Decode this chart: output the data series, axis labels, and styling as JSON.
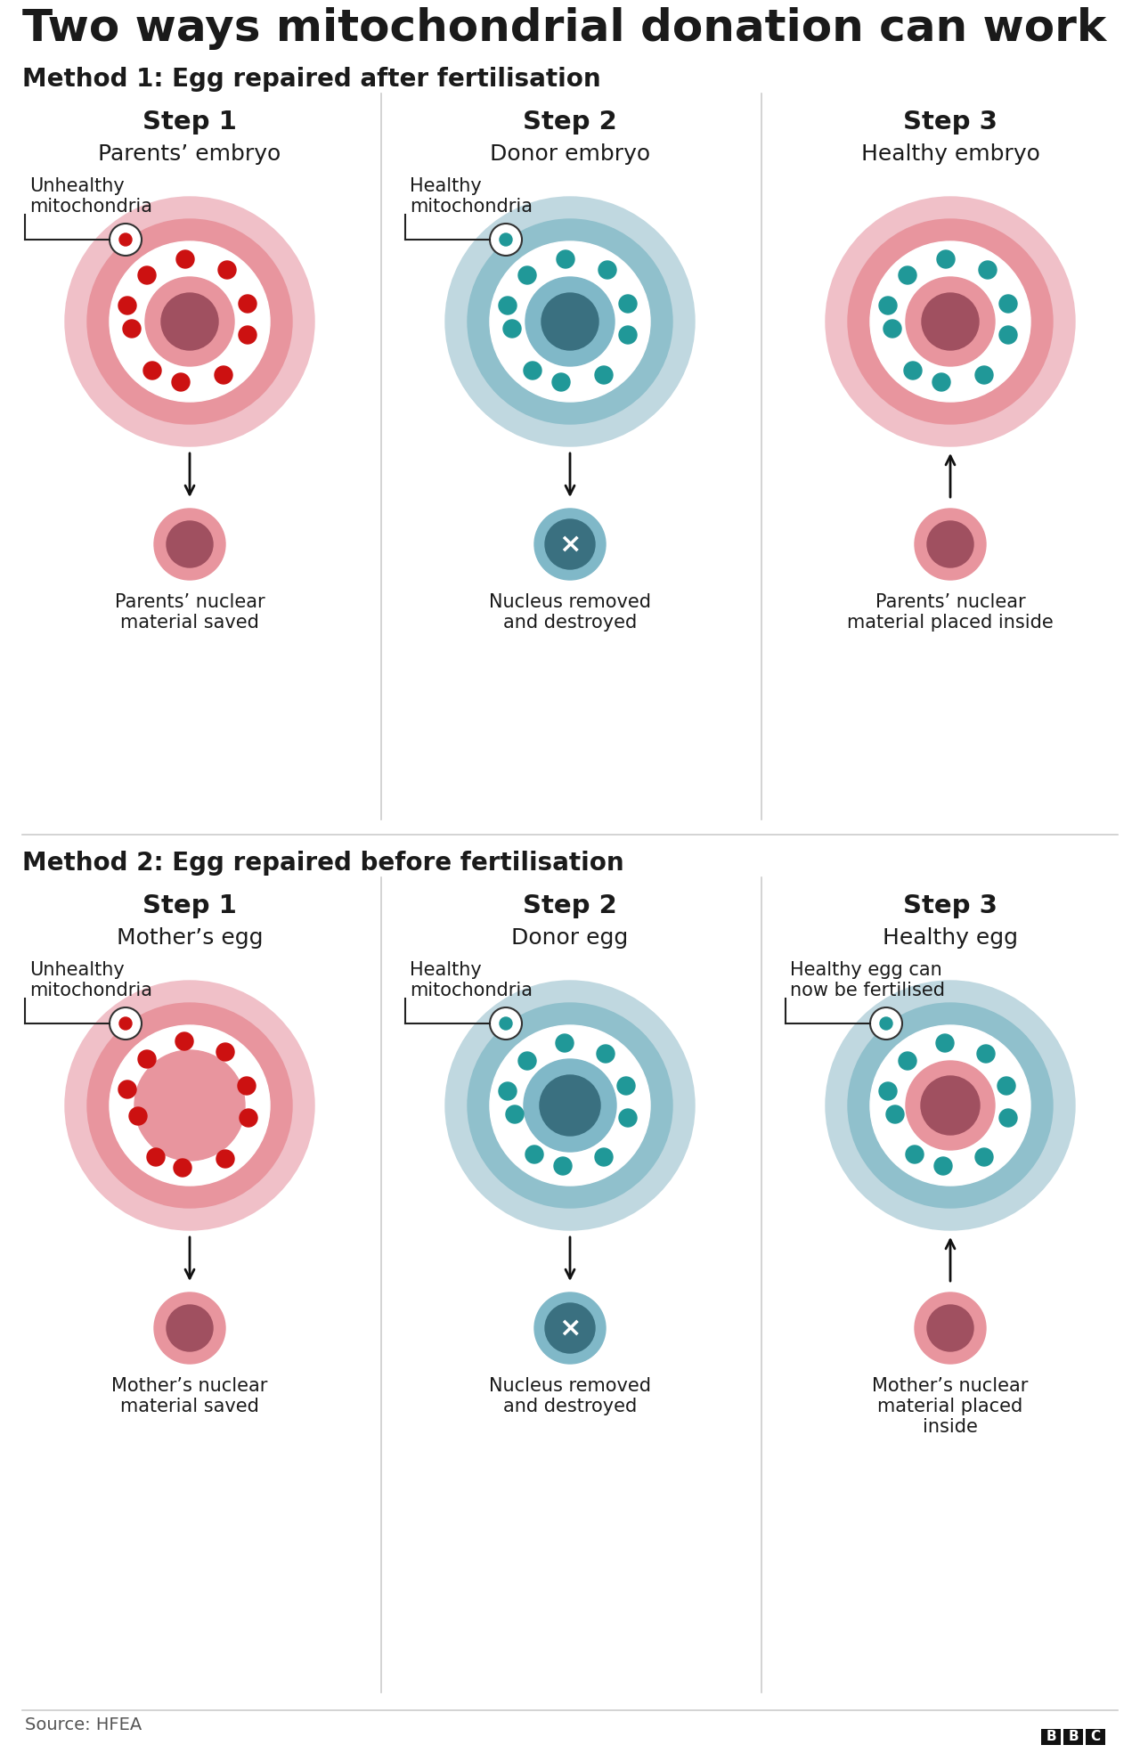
{
  "title": "Two ways mitochondrial donation can work",
  "method1_title": "Method 1: Egg repaired after fertilisation",
  "method2_title": "Method 2: Egg repaired before fertilisation",
  "method1_steps": [
    "Step 1",
    "Step 2",
    "Step 3"
  ],
  "method1_subtitles": [
    "Parents’ embryo",
    "Donor embryo",
    "Healthy embryo"
  ],
  "method1_labels": [
    "Unhealthy\nmitochondria",
    "Healthy\nmitochondria",
    ""
  ],
  "method1_label3": "",
  "method1_captions": [
    "Parents’ nuclear\nmaterial saved",
    "Nucleus removed\nand destroyed",
    "Parents’ nuclear\nmaterial placed inside"
  ],
  "method2_steps": [
    "Step 1",
    "Step 2",
    "Step 3"
  ],
  "method2_subtitles": [
    "Mother’s egg",
    "Donor egg",
    "Healthy egg"
  ],
  "method2_labels": [
    "Unhealthy\nmitochondria",
    "Healthy\nmitochondria",
    "Healthy egg can\nnow be fertilised"
  ],
  "method2_captions": [
    "Mother’s nuclear\nmaterial saved",
    "Nucleus removed\nand destroyed",
    "Mother’s nuclear\nmaterial placed\ninside"
  ],
  "pink_outer": "#f0c0c8",
  "pink_ring": "#e8959e",
  "pink_nuc_outer": "#e8959e",
  "pink_nuc_inner": "#a05060",
  "blue_outer": "#c0d8e0",
  "blue_ring": "#90c0cc",
  "blue_nuc_outer": "#80b8c8",
  "blue_nuc_inner": "#3a7080",
  "red_dot": "#cc1111",
  "teal_dot": "#209898",
  "step2_extracted_bg": "#80b8c8",
  "step2_extracted_inner": "#3a7080",
  "background": "#ffffff",
  "text_dark": "#1a1a1a",
  "divider_color": "#cccccc",
  "source_text": "Source: HFEA"
}
